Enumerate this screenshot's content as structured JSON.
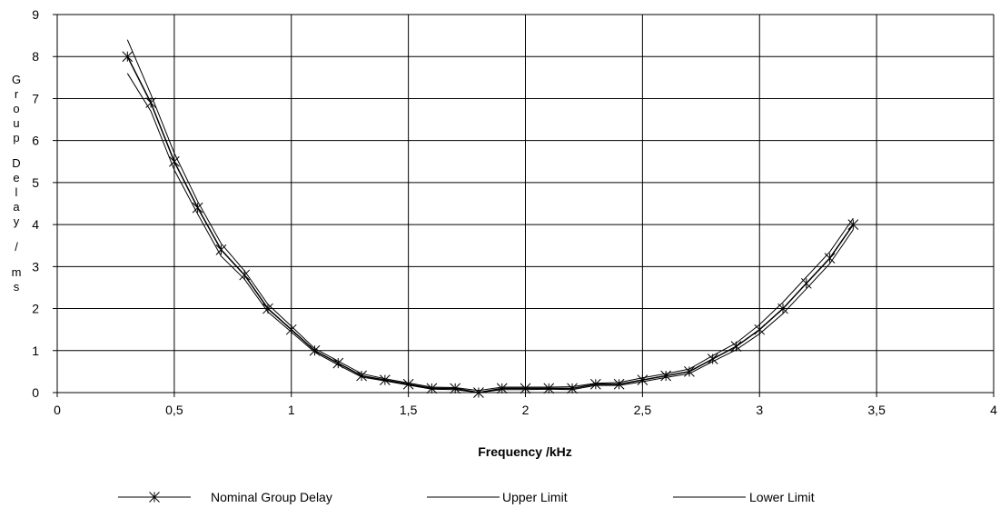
{
  "chart_data": {
    "type": "line",
    "title": "",
    "xlabel": "Frequency /kHz",
    "ylabel": "Group Delay / ms",
    "xlim": [
      0,
      4
    ],
    "ylim": [
      0,
      9
    ],
    "x_ticks": [
      "0",
      "0,5",
      "1",
      "1,5",
      "2",
      "2,5",
      "3",
      "3,5",
      "4"
    ],
    "y_ticks": [
      "0",
      "1",
      "2",
      "3",
      "4",
      "5",
      "6",
      "7",
      "8",
      "9"
    ],
    "grid": true,
    "legend": "bottom",
    "series": [
      {
        "name": "Nominal Group Delay",
        "marker": "asterisk",
        "color": "#000000",
        "x": [
          0.3,
          0.4,
          0.5,
          0.6,
          0.7,
          0.8,
          0.9,
          1.0,
          1.1,
          1.2,
          1.3,
          1.4,
          1.5,
          1.6,
          1.7,
          1.8,
          1.9,
          2.0,
          2.1,
          2.2,
          2.3,
          2.4,
          2.5,
          2.6,
          2.7,
          2.8,
          2.9,
          3.0,
          3.1,
          3.2,
          3.3,
          3.4
        ],
        "y": [
          8.0,
          6.9,
          5.5,
          4.4,
          3.4,
          2.8,
          2.0,
          1.5,
          1.0,
          0.7,
          0.4,
          0.3,
          0.2,
          0.1,
          0.1,
          0.0,
          0.1,
          0.1,
          0.1,
          0.1,
          0.2,
          0.2,
          0.3,
          0.4,
          0.5,
          0.8,
          1.1,
          1.5,
          2.0,
          2.6,
          3.2,
          4.0
        ]
      },
      {
        "name": "Upper Limit",
        "marker": "none",
        "color": "#000000",
        "x": [
          0.3,
          0.4,
          0.5,
          0.6,
          0.7,
          0.8,
          0.9,
          1.0,
          1.1,
          1.2,
          1.3,
          1.4,
          1.5,
          1.6,
          1.7,
          1.8,
          1.9,
          2.0,
          2.1,
          2.2,
          2.3,
          2.4,
          2.5,
          2.6,
          2.7,
          2.8,
          2.9,
          3.0,
          3.1,
          3.2,
          3.3,
          3.4
        ],
        "y": [
          8.4,
          7.1,
          5.7,
          4.55,
          3.55,
          2.9,
          2.1,
          1.58,
          1.05,
          0.75,
          0.45,
          0.33,
          0.23,
          0.13,
          0.12,
          0.05,
          0.13,
          0.13,
          0.13,
          0.14,
          0.22,
          0.24,
          0.35,
          0.45,
          0.56,
          0.88,
          1.18,
          1.62,
          2.15,
          2.75,
          3.35,
          4.15
        ]
      },
      {
        "name": "Lower Limit",
        "marker": "none",
        "color": "#000000",
        "x": [
          0.3,
          0.4,
          0.5,
          0.6,
          0.7,
          0.8,
          0.9,
          1.0,
          1.1,
          1.2,
          1.3,
          1.4,
          1.5,
          1.6,
          1.7,
          1.8,
          1.9,
          2.0,
          2.1,
          2.2,
          2.3,
          2.4,
          2.5,
          2.6,
          2.7,
          2.8,
          2.9,
          3.0,
          3.1,
          3.2,
          3.3,
          3.4
        ],
        "y": [
          7.6,
          6.7,
          5.3,
          4.25,
          3.25,
          2.7,
          1.92,
          1.44,
          0.96,
          0.66,
          0.37,
          0.28,
          0.18,
          0.08,
          0.07,
          0.0,
          0.07,
          0.07,
          0.08,
          0.07,
          0.17,
          0.17,
          0.26,
          0.36,
          0.45,
          0.74,
          1.02,
          1.4,
          1.88,
          2.47,
          3.07,
          3.88
        ]
      }
    ]
  }
}
